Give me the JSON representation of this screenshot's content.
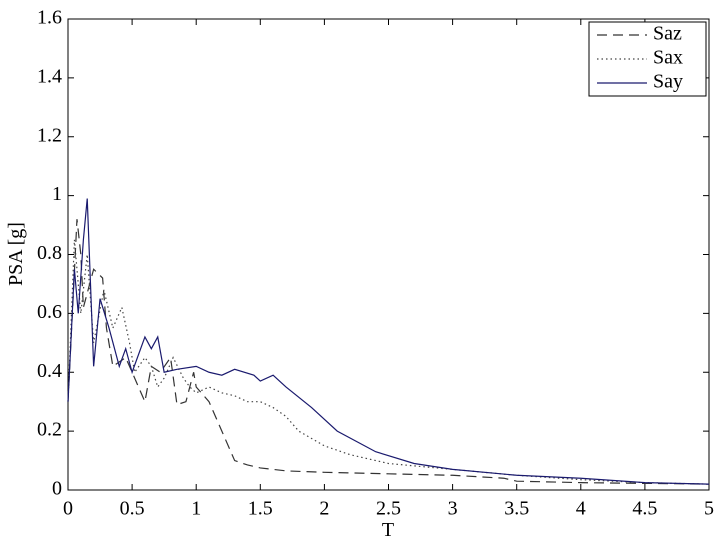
{
  "chart_data": {
    "type": "line",
    "xlabel": "T",
    "ylabel": "PSA [g]",
    "xlim": [
      0,
      5
    ],
    "xticks": [
      0,
      0.5,
      1,
      1.5,
      2,
      2.5,
      3,
      3.5,
      4,
      4.5,
      5
    ],
    "ylim": [
      0,
      1.6
    ],
    "yticks": [
      0,
      0.2,
      0.4,
      0.6,
      0.8,
      1,
      1.2,
      1.4,
      1.6
    ],
    "grid": false,
    "legend": "upper right",
    "series": [
      {
        "name": "Saz",
        "color": "#333333",
        "linestyle": "dashed",
        "x": [
          0,
          0.07,
          0.1,
          0.12,
          0.2,
          0.27,
          0.3,
          0.35,
          0.45,
          0.55,
          0.6,
          0.65,
          0.72,
          0.8,
          0.85,
          0.92,
          0.98,
          1.0,
          1.1,
          1.2,
          1.3,
          1.4,
          1.5,
          1.7,
          2,
          2.5,
          3,
          3.4,
          3.5,
          4,
          5
        ],
        "values": [
          0.3,
          0.92,
          0.8,
          0.62,
          0.75,
          0.72,
          0.55,
          0.42,
          0.45,
          0.35,
          0.3,
          0.42,
          0.4,
          0.45,
          0.29,
          0.3,
          0.4,
          0.35,
          0.3,
          0.2,
          0.1,
          0.085,
          0.075,
          0.065,
          0.06,
          0.055,
          0.05,
          0.04,
          0.03,
          0.025,
          0.02
        ]
      },
      {
        "name": "Sax",
        "color": "#444444",
        "linestyle": "dotted",
        "x": [
          0,
          0.05,
          0.1,
          0.15,
          0.2,
          0.28,
          0.35,
          0.42,
          0.48,
          0.52,
          0.6,
          0.65,
          0.7,
          0.75,
          0.82,
          0.9,
          0.95,
          1.0,
          1.1,
          1.2,
          1.3,
          1.4,
          1.5,
          1.6,
          1.7,
          1.8,
          2,
          2.2,
          2.5,
          3,
          3.5,
          4,
          4.5,
          5
        ],
        "values": [
          0.3,
          0.85,
          0.6,
          0.8,
          0.5,
          0.68,
          0.55,
          0.62,
          0.5,
          0.4,
          0.45,
          0.42,
          0.35,
          0.38,
          0.45,
          0.38,
          0.35,
          0.33,
          0.35,
          0.33,
          0.32,
          0.3,
          0.3,
          0.28,
          0.25,
          0.2,
          0.15,
          0.12,
          0.09,
          0.07,
          0.05,
          0.035,
          0.025,
          0.02
        ]
      },
      {
        "name": "Say",
        "color": "#1a1a6e",
        "linestyle": "solid",
        "x": [
          0,
          0.05,
          0.08,
          0.12,
          0.15,
          0.2,
          0.25,
          0.32,
          0.4,
          0.45,
          0.5,
          0.6,
          0.65,
          0.7,
          0.75,
          0.85,
          1.0,
          1.1,
          1.2,
          1.3,
          1.45,
          1.5,
          1.6,
          1.7,
          1.9,
          2.1,
          2.4,
          2.7,
          3.0,
          3.5,
          4,
          4.5,
          5
        ],
        "values": [
          0.3,
          0.75,
          0.6,
          0.85,
          0.99,
          0.42,
          0.65,
          0.55,
          0.42,
          0.48,
          0.4,
          0.52,
          0.48,
          0.52,
          0.4,
          0.41,
          0.42,
          0.4,
          0.39,
          0.41,
          0.39,
          0.37,
          0.39,
          0.35,
          0.28,
          0.2,
          0.13,
          0.09,
          0.07,
          0.05,
          0.04,
          0.025,
          0.02
        ]
      }
    ]
  }
}
